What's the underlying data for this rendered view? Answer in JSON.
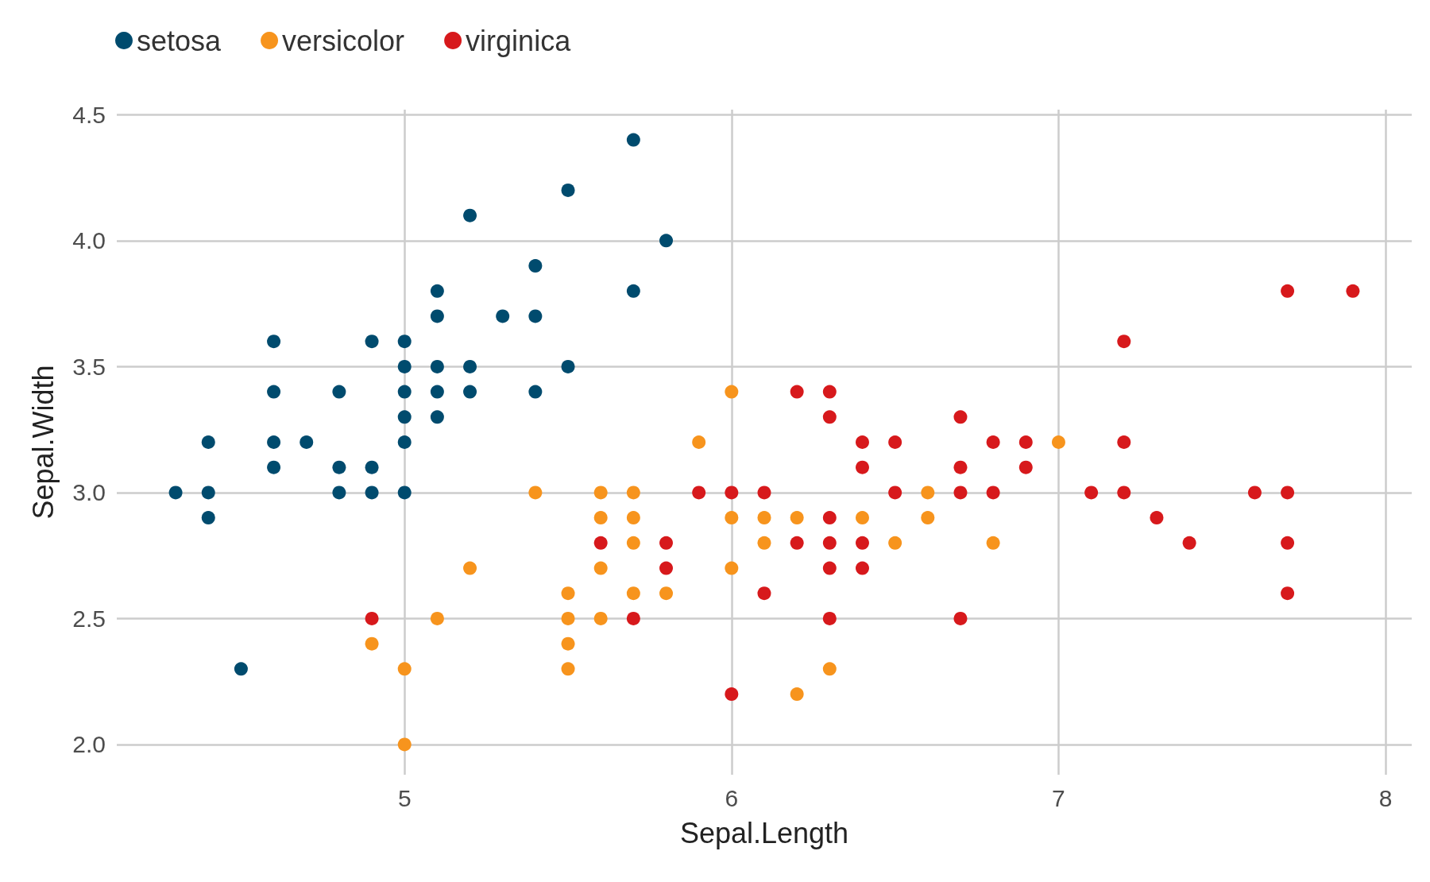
{
  "chart_data": {
    "type": "scatter",
    "xlabel": "Sepal.Length",
    "ylabel": "Sepal.Width",
    "xlim": [
      4.12,
      8.08
    ],
    "xticks": [
      5,
      6,
      7,
      8
    ],
    "ylim": [
      1.88,
      4.52
    ],
    "yticks": [
      {
        "value": 2,
        "label": "2.0"
      },
      2.5,
      {
        "value": 3,
        "label": "3.0"
      },
      3.5,
      {
        "value": 4,
        "label": "4.0"
      },
      4.5
    ],
    "grid": true,
    "legend": "top left",
    "marker": "circle",
    "series": [
      {
        "name": "setosa",
        "color": "#004b6e",
        "x": [
          4.3,
          4.4,
          4.4,
          4.4,
          4.5,
          4.6,
          4.6,
          4.6,
          4.6,
          4.7,
          4.8,
          4.8,
          4.8,
          4.9,
          4.9,
          4.9,
          5.0,
          5.0,
          5.0,
          5.0,
          5.0,
          5.0,
          5.1,
          5.1,
          5.1,
          5.1,
          5.1,
          5.2,
          5.2,
          5.2,
          5.3,
          5.4,
          5.4,
          5.4,
          5.5,
          5.5,
          5.7,
          5.7,
          5.8
        ],
        "values": [
          3.0,
          3.2,
          3.0,
          2.9,
          2.3,
          3.6,
          3.4,
          3.2,
          3.1,
          3.2,
          3.4,
          3.1,
          3.0,
          3.6,
          3.1,
          3.0,
          3.6,
          3.5,
          3.4,
          3.3,
          3.2,
          3.0,
          3.8,
          3.7,
          3.5,
          3.4,
          3.3,
          4.1,
          3.5,
          3.4,
          3.7,
          3.9,
          3.7,
          3.4,
          4.2,
          3.5,
          4.4,
          3.8,
          4.0
        ]
      },
      {
        "name": "versicolor",
        "color": "#f7941d",
        "x": [
          4.9,
          5.0,
          5.0,
          5.1,
          5.2,
          5.4,
          5.5,
          5.5,
          5.5,
          5.5,
          5.6,
          5.6,
          5.6,
          5.6,
          5.7,
          5.7,
          5.7,
          5.7,
          5.8,
          5.9,
          6.0,
          6.0,
          6.0,
          6.1,
          6.1,
          6.2,
          6.2,
          6.3,
          6.4,
          6.5,
          6.6,
          6.6,
          6.8,
          7.0
        ],
        "values": [
          2.4,
          2.3,
          2.0,
          2.5,
          2.7,
          3.0,
          2.6,
          2.5,
          2.4,
          2.3,
          3.0,
          2.9,
          2.7,
          2.5,
          3.0,
          2.9,
          2.8,
          2.6,
          2.6,
          3.2,
          3.4,
          2.9,
          2.7,
          2.9,
          2.8,
          2.9,
          2.2,
          2.3,
          2.9,
          2.8,
          3.0,
          2.9,
          2.8,
          3.2
        ]
      },
      {
        "name": "virginica",
        "color": "#d7191c",
        "x": [
          4.9,
          5.6,
          5.7,
          5.8,
          5.8,
          5.9,
          6.0,
          6.0,
          6.1,
          6.1,
          6.2,
          6.2,
          6.3,
          6.3,
          6.3,
          6.3,
          6.3,
          6.3,
          6.4,
          6.4,
          6.4,
          6.4,
          6.5,
          6.5,
          6.7,
          6.7,
          6.7,
          6.7,
          6.8,
          6.8,
          6.9,
          6.9,
          7.1,
          7.2,
          7.2,
          7.2,
          7.3,
          7.4,
          7.6,
          7.7,
          7.7,
          7.7,
          7.7,
          7.9
        ],
        "values": [
          2.5,
          2.8,
          2.5,
          2.8,
          2.7,
          3.0,
          3.0,
          2.2,
          3.0,
          2.6,
          3.4,
          2.8,
          3.4,
          3.3,
          2.9,
          2.8,
          2.7,
          2.5,
          3.2,
          3.1,
          2.8,
          2.7,
          3.2,
          3.0,
          3.3,
          3.1,
          3.0,
          2.5,
          3.2,
          3.0,
          3.2,
          3.1,
          3.0,
          3.6,
          3.2,
          3.0,
          2.9,
          2.8,
          3.0,
          3.8,
          3.0,
          2.8,
          2.6,
          3.8
        ]
      }
    ]
  }
}
